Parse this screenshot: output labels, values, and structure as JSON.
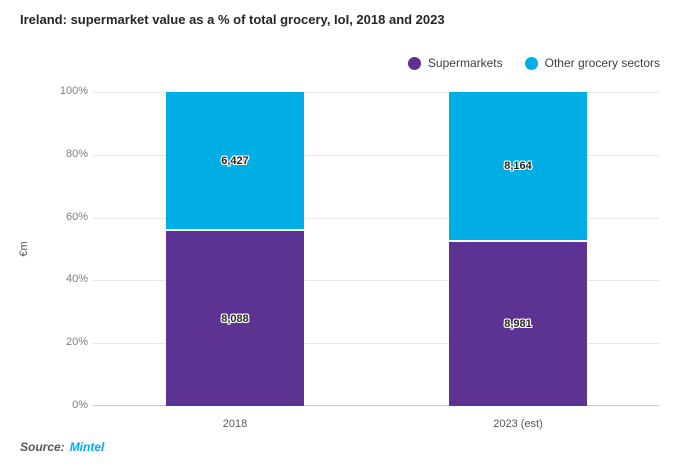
{
  "title": "Ireland: supermarket value as a % of total grocery, IoI, 2018 and 2023",
  "legend": {
    "items": [
      {
        "id": "supermarkets",
        "label": "Supermarkets",
        "color": "#5C3292"
      },
      {
        "id": "other-grocery-sectors",
        "label": "Other grocery sectors",
        "color": "#00AEE6"
      }
    ]
  },
  "chart_data": {
    "type": "bar",
    "subtype": "100%-stacked-column",
    "title": "Ireland: supermarket value as a % of total grocery, IoI, 2018 and 2023",
    "categories": [
      "2018",
      "2023 (est)"
    ],
    "series": [
      {
        "name": "Supermarkets",
        "color": "#5C3292",
        "values": [
          8088,
          8981
        ],
        "labels": [
          "8,088",
          "8,981"
        ]
      },
      {
        "name": "Other grocery sectors",
        "color": "#00AEE6",
        "values": [
          6427,
          8164
        ],
        "labels": [
          "6,427",
          "8,164"
        ]
      }
    ],
    "xlabel": "",
    "ylabel": "€m",
    "ylim": [
      0,
      100
    ],
    "y_ticks": [
      {
        "label": "0%",
        "value": 0
      },
      {
        "label": "20%",
        "value": 20
      },
      {
        "label": "40%",
        "value": 40
      },
      {
        "label": "60%",
        "value": 60
      },
      {
        "label": "80%",
        "value": 80
      },
      {
        "label": "100%",
        "value": 100
      }
    ],
    "grid": true,
    "legend_position": "top-right"
  },
  "source": {
    "prefix": "Source:",
    "link": "Mintel",
    "link_color": "#00AEEF"
  }
}
